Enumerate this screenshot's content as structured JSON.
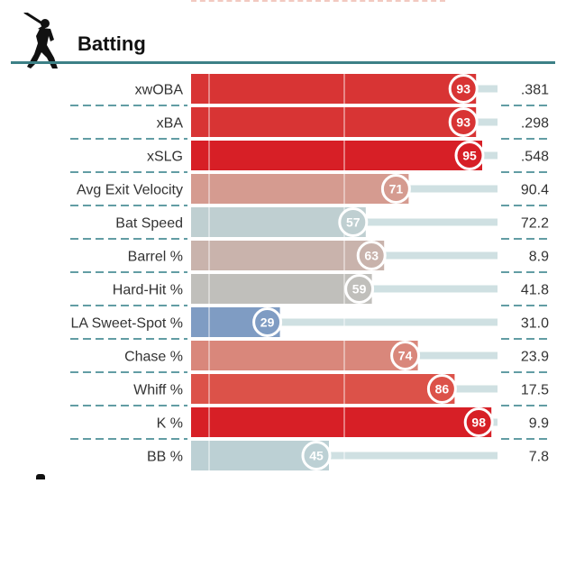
{
  "section": {
    "title": "Batting",
    "icon": "batter-silhouette-icon"
  },
  "colors": {
    "rule": "#3c8086",
    "dash": "#2e7d86",
    "track": "#cfe0e2",
    "scale": [
      "#5a7fb9",
      "#a9b9c6",
      "#c7c3c0",
      "#d59b90",
      "#e06f62",
      "#d71f26"
    ]
  },
  "chart_data": {
    "type": "bar",
    "orientation": "horizontal",
    "title": "Batting",
    "xlim": [
      0,
      100
    ],
    "gridlines": [
      50
    ],
    "categories": [
      "xwOBA",
      "xBA",
      "xSLG",
      "Avg Exit Velocity",
      "Bat Speed",
      "Barrel %",
      "Hard-Hit %",
      "LA Sweet-Spot %",
      "Chase %",
      "Whiff %",
      "K %",
      "BB %"
    ],
    "percentiles": [
      93,
      93,
      95,
      71,
      57,
      63,
      59,
      29,
      74,
      86,
      98,
      45
    ],
    "values": [
      ".381",
      ".298",
      ".548",
      "90.4",
      "72.2",
      "8.9",
      "41.8",
      "31.0",
      "23.9",
      "17.5",
      "9.9",
      "7.8"
    ],
    "bar_colors": [
      "#d83434",
      "#d83434",
      "#d71f26",
      "#d59b90",
      "#bfcfd1",
      "#c9b3ac",
      "#c0bfbb",
      "#7f9cc3",
      "#d9877b",
      "#dc5249",
      "#d71f26",
      "#bcd0d4"
    ]
  }
}
